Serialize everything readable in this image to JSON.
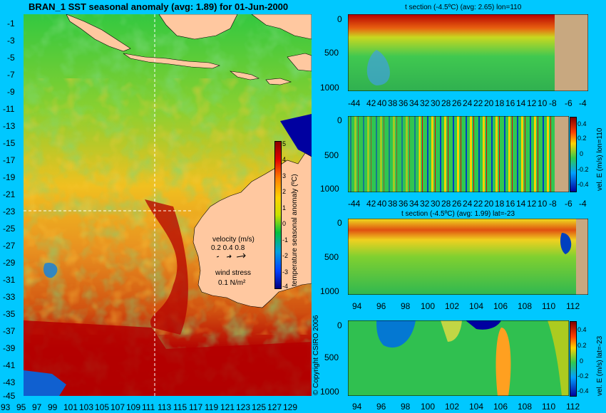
{
  "main_map": {
    "title": "BRAN_1 SST seasonal anomaly (avg: 1.89) for 01-Jun-2000",
    "lat_ticks": [
      "-1",
      "-3",
      "-5",
      "-7",
      "-9",
      "-11",
      "-13",
      "-15",
      "-17",
      "-19",
      "-21",
      "-23",
      "-25",
      "-27",
      "-29",
      "-31",
      "-33",
      "-35",
      "-37",
      "-39",
      "-41",
      "-43",
      "-45"
    ],
    "lon_ticks": [
      "93",
      "95",
      "97",
      "99",
      "101",
      "103",
      "105",
      "107",
      "109",
      "111",
      "113",
      "115",
      "117",
      "119",
      "121",
      "123",
      "125",
      "127",
      "129"
    ],
    "lon_range": [
      93,
      130
    ],
    "lat_range": [
      -45,
      0
    ],
    "colorbar_label": "temperature seasonal anomaly (ºC)",
    "colorbar_ticks": [
      "5",
      "4",
      "3",
      "2",
      "1",
      "0",
      "-1",
      "-2",
      "-3",
      "-4"
    ],
    "velocity_legend_title": "velocity (m/s)",
    "velocity_legend_values": "0.2 0.4 0.8",
    "wind_legend_title": "wind stress",
    "wind_legend_value": "0.1 N/m²",
    "copyright": "© Copyright CSIRO 2006"
  },
  "panel1": {
    "title": "t section (-4.5ºC) (avg: 2.65) lon=110",
    "x_ticks": [
      "-44",
      "42",
      "40",
      "38",
      "36",
      "34",
      "32",
      "30",
      "28",
      "26",
      "24",
      "22",
      "20",
      "18",
      "16",
      "14",
      "12",
      "10",
      "-8",
      "-6",
      "-4"
    ],
    "y_ticks": [
      "0",
      "500",
      "1000"
    ]
  },
  "panel2": {
    "x_ticks": [
      "-44",
      "42",
      "40",
      "38",
      "36",
      "34",
      "32",
      "30",
      "28",
      "26",
      "24",
      "22",
      "20",
      "18",
      "16",
      "14",
      "12",
      "10",
      "-8",
      "-6",
      "-4"
    ],
    "y_ticks": [
      "0",
      "500",
      "1000"
    ],
    "colorbar_ticks": [
      "0.4",
      "0.2",
      "0",
      "-0.2",
      "-0.4"
    ],
    "colorbar_label": "vel. E (m/s) lon=110"
  },
  "panel3": {
    "title": "t section (-4.5ºC) (avg: 1.99) lat=-23",
    "x_ticks": [
      "94",
      "96",
      "98",
      "100",
      "102",
      "104",
      "106",
      "108",
      "110",
      "112"
    ],
    "y_ticks": [
      "0",
      "500",
      "1000"
    ]
  },
  "panel4": {
    "x_ticks": [
      "94",
      "96",
      "98",
      "100",
      "102",
      "104",
      "106",
      "108",
      "110",
      "112"
    ],
    "y_ticks": [
      "0",
      "500",
      "1000"
    ],
    "colorbar_ticks": [
      "0.4",
      "0.2",
      "0",
      "-0.2",
      "-0.4"
    ],
    "colorbar_label": "vel. E (m/s) lat=-23"
  },
  "colors": {
    "background": "#00c8ff",
    "land": "#ffc8a0",
    "ocean_high": "#b40000",
    "ocean_mid": "#ffd200",
    "ocean_low": "#00b450",
    "ocean_cold": "#0000a0"
  }
}
